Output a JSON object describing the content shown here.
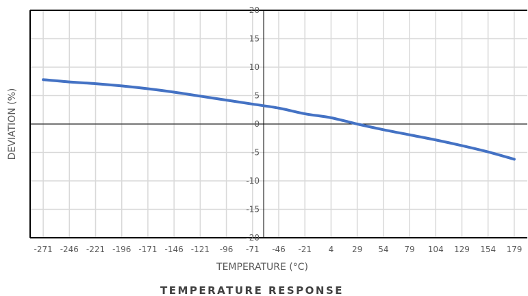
{
  "chart_data": {
    "type": "line",
    "title": "TEMPERATURE RESPONSE",
    "xlabel": "TEMPERATURE (°C)",
    "ylabel": "DEVIATION (%)",
    "x_ticks": [
      -271,
      -246,
      -221,
      -196,
      -171,
      -146,
      -121,
      -96,
      -71,
      -46,
      -21,
      4,
      29,
      54,
      79,
      104,
      129,
      154,
      179
    ],
    "y_ticks": [
      20,
      15,
      10,
      5,
      0,
      -5,
      -10,
      -15,
      -20
    ],
    "xlim": [
      -283.5,
      191.5
    ],
    "ylim": [
      -20,
      20
    ],
    "grid": true,
    "colors": {
      "series": "#4472C4",
      "grid": "#d9d9d9",
      "axis": "#000000"
    },
    "series": [
      {
        "x": [
          -271,
          -246,
          -221,
          -196,
          -171,
          -146,
          -121,
          -96,
          -71,
          -46,
          -21,
          4,
          29,
          54,
          79,
          104,
          129,
          154,
          179
        ],
        "y": [
          7.8,
          7.4,
          7.1,
          6.7,
          6.2,
          5.6,
          4.9,
          4.2,
          3.5,
          2.8,
          1.8,
          1.1,
          0.0,
          -1.0,
          -1.9,
          -2.8,
          -3.8,
          -4.9,
          -6.2
        ]
      }
    ]
  }
}
